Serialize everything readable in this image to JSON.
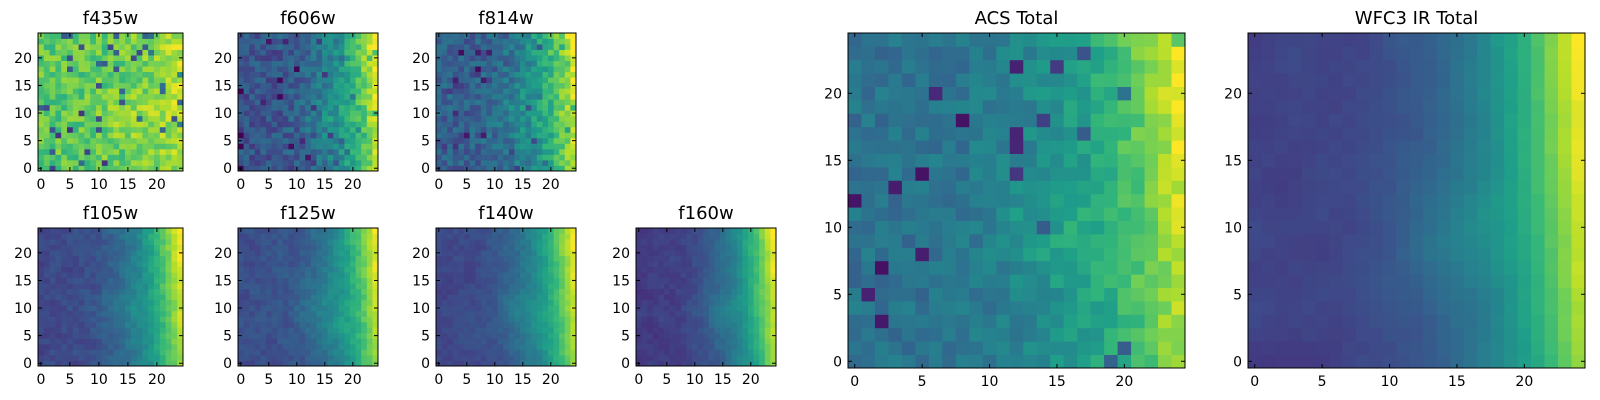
{
  "figure": {
    "colormap": "viridis",
    "colormap_stops": [
      "#440154",
      "#482878",
      "#3e4a89",
      "#31688e",
      "#26828e",
      "#1f9e89",
      "#35b779",
      "#6ece58",
      "#b5de2b",
      "#fde725"
    ]
  },
  "chart_data": [
    {
      "type": "heatmap",
      "title": "f435w",
      "grid_size": [
        25,
        25
      ],
      "xlim": [
        -0.5,
        24.5
      ],
      "ylim": [
        -0.5,
        24.5
      ],
      "xticks": [
        0,
        5,
        10,
        15,
        20
      ],
      "yticks": [
        0,
        5,
        10,
        15,
        20
      ],
      "pattern": {
        "base": 0.74,
        "noise": 0.22,
        "gradient": 0.16,
        "seed": 11,
        "smooth": 0.0,
        "dips": 0.07,
        "dip_depth": 0.5
      }
    },
    {
      "type": "heatmap",
      "title": "f606w",
      "grid_size": [
        25,
        25
      ],
      "xlim": [
        -0.5,
        24.5
      ],
      "ylim": [
        -0.5,
        24.5
      ],
      "xticks": [
        0,
        5,
        10,
        15,
        20
      ],
      "yticks": [
        0,
        5,
        10,
        15,
        20
      ],
      "pattern": {
        "base": 0.26,
        "noise": 0.2,
        "gradient": 0.75,
        "seed": 23,
        "smooth": 0.0,
        "dips": 0.05,
        "dip_depth": 0.2
      }
    },
    {
      "type": "heatmap",
      "title": "f814w",
      "grid_size": [
        25,
        25
      ],
      "xlim": [
        -0.5,
        24.5
      ],
      "ylim": [
        -0.5,
        24.5
      ],
      "xticks": [
        0,
        5,
        10,
        15,
        20
      ],
      "yticks": [
        0,
        5,
        10,
        15,
        20
      ],
      "pattern": {
        "base": 0.3,
        "noise": 0.2,
        "gradient": 0.7,
        "seed": 37,
        "smooth": 0.0,
        "dips": 0.05,
        "dip_depth": 0.2
      }
    },
    {
      "type": "heatmap",
      "title": "f105w",
      "grid_size": [
        25,
        25
      ],
      "xlim": [
        -0.5,
        24.5
      ],
      "ylim": [
        -0.5,
        24.5
      ],
      "xticks": [
        0,
        5,
        10,
        15,
        20
      ],
      "yticks": [
        0,
        5,
        10,
        15,
        20
      ],
      "pattern": {
        "base": 0.22,
        "noise": 0.12,
        "gradient": 0.78,
        "seed": 41,
        "smooth": 0.35,
        "dips": 0.0,
        "dip_depth": 0.0
      }
    },
    {
      "type": "heatmap",
      "title": "f125w",
      "grid_size": [
        25,
        25
      ],
      "xlim": [
        -0.5,
        24.5
      ],
      "ylim": [
        -0.5,
        24.5
      ],
      "xticks": [
        0,
        5,
        10,
        15,
        20
      ],
      "yticks": [
        0,
        5,
        10,
        15,
        20
      ],
      "pattern": {
        "base": 0.24,
        "noise": 0.12,
        "gradient": 0.76,
        "seed": 53,
        "smooth": 0.35,
        "dips": 0.0,
        "dip_depth": 0.0
      }
    },
    {
      "type": "heatmap",
      "title": "f140w",
      "grid_size": [
        25,
        25
      ],
      "xlim": [
        -0.5,
        24.5
      ],
      "ylim": [
        -0.5,
        24.5
      ],
      "xticks": [
        0,
        5,
        10,
        15,
        20
      ],
      "yticks": [
        0,
        5,
        10,
        15,
        20
      ],
      "pattern": {
        "base": 0.22,
        "noise": 0.1,
        "gradient": 0.78,
        "seed": 67,
        "smooth": 0.45,
        "dips": 0.0,
        "dip_depth": 0.0
      }
    },
    {
      "type": "heatmap",
      "title": "f160w",
      "grid_size": [
        25,
        25
      ],
      "xlim": [
        -0.5,
        24.5
      ],
      "ylim": [
        -0.5,
        24.5
      ],
      "xticks": [
        0,
        5,
        10,
        15,
        20
      ],
      "yticks": [
        0,
        5,
        10,
        15,
        20
      ],
      "pattern": {
        "base": 0.18,
        "noise": 0.1,
        "gradient": 0.82,
        "seed": 79,
        "smooth": 0.5,
        "dips": 0.0,
        "dip_depth": 0.0
      }
    },
    {
      "type": "heatmap",
      "title": "ACS Total",
      "grid_size": [
        25,
        25
      ],
      "xlim": [
        -0.5,
        24.5
      ],
      "ylim": [
        -0.5,
        24.5
      ],
      "xticks": [
        0,
        5,
        10,
        15,
        20
      ],
      "yticks": [
        0,
        5,
        10,
        15,
        20
      ],
      "pattern": {
        "base": 0.38,
        "noise": 0.14,
        "gradient": 0.6,
        "seed": 89,
        "smooth": 0.0,
        "dips": 0.04,
        "dip_depth": 0.3
      }
    },
    {
      "type": "heatmap",
      "title": "WFC3 IR Total",
      "grid_size": [
        25,
        25
      ],
      "xlim": [
        -0.5,
        24.5
      ],
      "ylim": [
        -0.5,
        24.5
      ],
      "xticks": [
        0,
        5,
        10,
        15,
        20
      ],
      "yticks": [
        0,
        5,
        10,
        15,
        20
      ],
      "pattern": {
        "base": 0.2,
        "noise": 0.06,
        "gradient": 0.8,
        "seed": 97,
        "smooth": 0.7,
        "dips": 0.0,
        "dip_depth": 0.0
      }
    }
  ]
}
